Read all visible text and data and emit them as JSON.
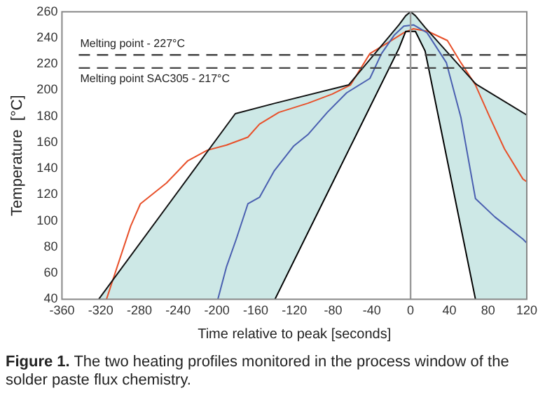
{
  "chart_data": {
    "type": "line",
    "xlabel": "Time relative to peak [seconds]",
    "ylabel": "Temperature  [°C]",
    "xlim": [
      -360,
      120
    ],
    "xticks": [
      -360,
      -320,
      -280,
      -240,
      -200,
      -160,
      -120,
      -80,
      -40,
      0,
      40,
      80,
      120
    ],
    "ylim": [
      40,
      260
    ],
    "yticks": [
      40,
      60,
      80,
      100,
      120,
      140,
      160,
      180,
      200,
      220,
      240,
      260
    ],
    "grid": false,
    "legend": false,
    "marker": "none",
    "series": [
      {
        "type": "line",
        "color": "#e8502a",
        "x": [
          -314,
          -306,
          -289,
          -279,
          -252,
          -230,
          -210,
          -190,
          -168,
          -156,
          -136,
          -106,
          -81,
          -62,
          -42,
          -22,
          -7,
          3,
          18,
          38,
          52,
          67,
          82,
          97,
          116,
          120
        ],
        "values": [
          40,
          58,
          96,
          113,
          129,
          146,
          154,
          158,
          164,
          174,
          183,
          190,
          197,
          204,
          228,
          237,
          244,
          247,
          245,
          238,
          221,
          204,
          179,
          155,
          132,
          130
        ]
      },
      {
        "type": "line",
        "color": "#4a5fb0",
        "x": [
          -199,
          -190,
          -180,
          -168,
          -156,
          -141,
          -121,
          -106,
          -86,
          -66,
          -42,
          -30,
          -17,
          -7,
          3,
          17,
          37,
          52,
          67,
          87,
          116,
          120
        ],
        "values": [
          40,
          65,
          86,
          113,
          118,
          138,
          157,
          166,
          183,
          198,
          209,
          228,
          242,
          249,
          250,
          244,
          221,
          179,
          117,
          103,
          86,
          83
        ]
      },
      {
        "type": "line",
        "color": "#000000",
        "x": [
          -140,
          -64,
          -12,
          -5,
          0,
          5,
          15,
          67
        ],
        "values": [
          40,
          154,
          232,
          245,
          245,
          245,
          230,
          40
        ]
      },
      {
        "type": "line",
        "color": "#111111",
        "x": [
          -322,
          -181,
          -140,
          -64,
          -12,
          -5,
          0,
          5,
          15,
          67,
          69,
          120
        ],
        "values": [
          40,
          182,
          190,
          204,
          250,
          257,
          260,
          257,
          248,
          205,
          204,
          181
        ],
        "lower": [
          40,
          40,
          40,
          154,
          232,
          245,
          245,
          245,
          230,
          40,
          40,
          40
        ],
        "upper": [
          40,
          182,
          190,
          204,
          250,
          257,
          260,
          257,
          248,
          205,
          204,
          181
        ]
      }
    ],
    "ref_lines": [
      {
        "axis": "y",
        "value": 227,
        "label": "Melting point - 227°C",
        "color": "#444444",
        "line_style": "dashed"
      },
      {
        "axis": "y",
        "value": 217,
        "label": "Melting point SAC305 - 217°C",
        "color": "#444444",
        "line_style": "dashed"
      },
      {
        "axis": "x",
        "value": 0,
        "color": "#999999",
        "line_style": "solid"
      }
    ],
    "annotations": [
      "Figure 1. The two heating profiles monitored in the process window of the solder paste flux chemistry."
    ]
  }
}
